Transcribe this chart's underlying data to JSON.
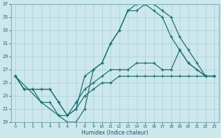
{
  "xlabel": "Humidex (Indice chaleur)",
  "bg_color": "#cce8ed",
  "grid_color": "#aacdd4",
  "line_color": "#1a7070",
  "xlim": [
    -0.5,
    23.5
  ],
  "ylim": [
    19,
    37
  ],
  "xticks": [
    0,
    1,
    2,
    3,
    4,
    5,
    6,
    7,
    8,
    9,
    10,
    11,
    12,
    13,
    14,
    15,
    16,
    17,
    18,
    19,
    20,
    21,
    22,
    23
  ],
  "yticks": [
    19,
    21,
    23,
    25,
    27,
    29,
    31,
    33,
    35,
    37
  ],
  "lines": [
    {
      "x": [
        0,
        1,
        2,
        3,
        4,
        5,
        6,
        7,
        8,
        9,
        10,
        11,
        12,
        13,
        14,
        15,
        16,
        17,
        18,
        19,
        20,
        21,
        22,
        23
      ],
      "y": [
        26,
        24,
        24,
        24,
        24,
        22,
        20,
        21,
        23,
        24,
        25,
        25,
        26,
        26,
        26,
        26,
        26,
        26,
        26,
        26,
        26,
        26,
        26,
        26
      ]
    },
    {
      "x": [
        0,
        1,
        2,
        3,
        4,
        5,
        6,
        7,
        8,
        9,
        10,
        11,
        12,
        13,
        14,
        15,
        16,
        17,
        18,
        19,
        20,
        21,
        22,
        23
      ],
      "y": [
        26,
        24,
        24,
        24,
        24,
        22,
        20,
        22,
        24,
        25,
        26,
        27,
        27,
        27,
        28,
        28,
        28,
        27,
        27,
        30,
        28,
        27,
        26,
        26
      ]
    },
    {
      "x": [
        0,
        1,
        2,
        3,
        5,
        6,
        7,
        8,
        9,
        10,
        11,
        12,
        13,
        14,
        15,
        16,
        17,
        18,
        19,
        20,
        21,
        22,
        23
      ],
      "y": [
        26,
        24,
        24,
        22,
        20,
        19,
        19,
        21,
        27,
        28,
        31,
        33,
        36,
        36,
        37,
        37,
        36,
        35,
        32,
        30,
        28,
        26,
        26
      ]
    },
    {
      "x": [
        0,
        3,
        4,
        5,
        6,
        7,
        8,
        9,
        10,
        11,
        12,
        13,
        14,
        15,
        16,
        17,
        18,
        19,
        20,
        22,
        23
      ],
      "y": [
        26,
        22,
        22,
        20,
        20,
        21,
        26,
        27,
        28,
        31,
        33,
        36,
        37,
        37,
        36,
        35,
        32,
        30,
        28,
        26,
        26
      ]
    }
  ]
}
